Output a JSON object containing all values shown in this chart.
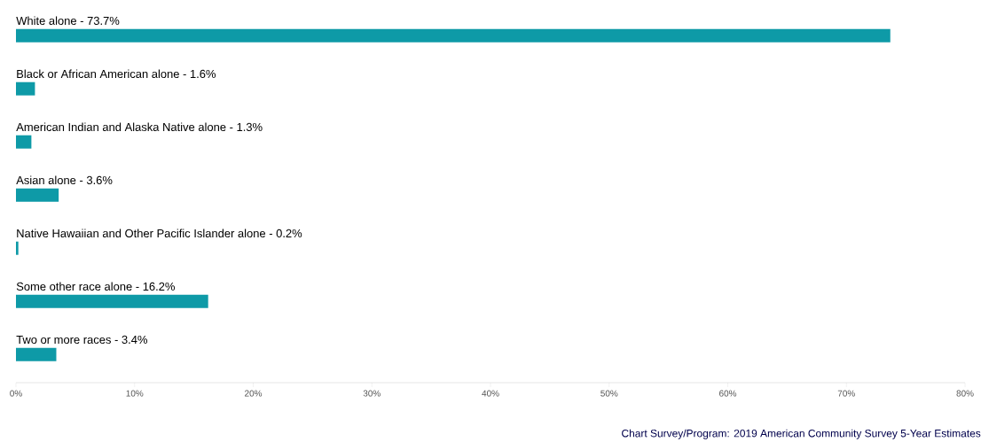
{
  "chart_data": {
    "type": "bar",
    "orientation": "horizontal",
    "categories": [
      "White alone - 73.7%",
      "Black or African American alone - 1.6%",
      "American Indian and Alaska Native alone - 1.3%",
      "Asian alone - 3.6%",
      "Native Hawaiian and Other Pacific Islander alone - 0.2%",
      "Some other race alone - 16.2%",
      "Two or more races - 3.4%"
    ],
    "values": [
      73.7,
      1.6,
      1.3,
      3.6,
      0.2,
      16.2,
      3.4
    ],
    "color": "#0e9aa7",
    "xlim": [
      0,
      80
    ],
    "xticks": [
      {
        "value": 0,
        "label": "0%"
      },
      {
        "value": 10,
        "label": "10%"
      },
      {
        "value": 20,
        "label": "20%"
      },
      {
        "value": 30,
        "label": "30%"
      },
      {
        "value": 40,
        "label": "40%"
      },
      {
        "value": 50,
        "label": "50%"
      },
      {
        "value": 60,
        "label": "60%"
      },
      {
        "value": 70,
        "label": "70%"
      },
      {
        "value": 80,
        "label": "80%"
      }
    ],
    "annotations": [
      "Chart Survey/Program: 2019 American Community Survey 5-Year Estimates"
    ]
  }
}
